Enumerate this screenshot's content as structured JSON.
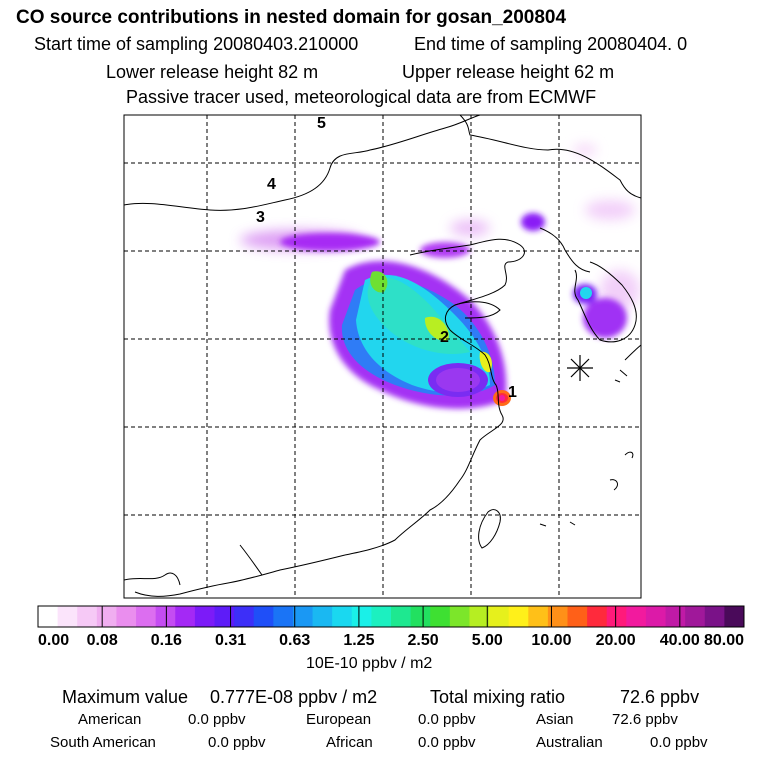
{
  "header": {
    "title": "CO  source contributions in nested domain for gosan_200804",
    "start_label": "Start time of sampling 20080403.210000",
    "end_label": "End time of sampling 20080404.     0",
    "lower_label": "Lower release height   82 m",
    "upper_label": "Upper release height   62 m",
    "info": "Passive tracer used, meteorological data are from ECMWF"
  },
  "map": {
    "markers": [
      "1",
      "2",
      "3",
      "4",
      "5"
    ],
    "station_symbol": "asterisk-icon"
  },
  "colorbar": {
    "colors": [
      "#ffffff",
      "#fbe4fb",
      "#f6c9f6",
      "#f0aef0",
      "#ea8eee",
      "#dc6ef0",
      "#c44cf2",
      "#a429f5",
      "#7c1bf8",
      "#5e1cf8",
      "#3d2ff8",
      "#1f4ff8",
      "#1a74f6",
      "#1a98f4",
      "#1ab8f2",
      "#1ad8f0",
      "#1af0e8",
      "#1cf0c0",
      "#1ee890",
      "#22e060",
      "#3ee032",
      "#7ce62a",
      "#b6ee22",
      "#e6f01c",
      "#fff01a",
      "#ffc018",
      "#ff9018",
      "#ff6018",
      "#ff2a3c",
      "#ff1a7a",
      "#f21a9e",
      "#dc1aa8",
      "#c01aa6",
      "#a0189a",
      "#7a1288",
      "#4a0a5a"
    ],
    "ticks": [
      "0.00",
      "0.08",
      "0.16",
      "0.31",
      "0.63",
      "1.25",
      "2.50",
      "5.00",
      "10.00",
      "20.00",
      "40.00",
      "80.00"
    ],
    "unit": "10E-10 ppbv / m2"
  },
  "summary": {
    "max_label": "Maximum value",
    "max_value": "0.777E-08 ppbv / m2",
    "total_label": "Total mixing ratio",
    "total_value": "72.6 ppbv",
    "regions": [
      {
        "name": "American",
        "value": "0.0 ppbv"
      },
      {
        "name": "European",
        "value": "0.0 ppbv"
      },
      {
        "name": "Asian",
        "value": "72.6 ppbv"
      },
      {
        "name": "South American",
        "value": "0.0 ppbv"
      },
      {
        "name": "African",
        "value": "0.0 ppbv"
      },
      {
        "name": "Australian",
        "value": "0.0 ppbv"
      }
    ]
  }
}
